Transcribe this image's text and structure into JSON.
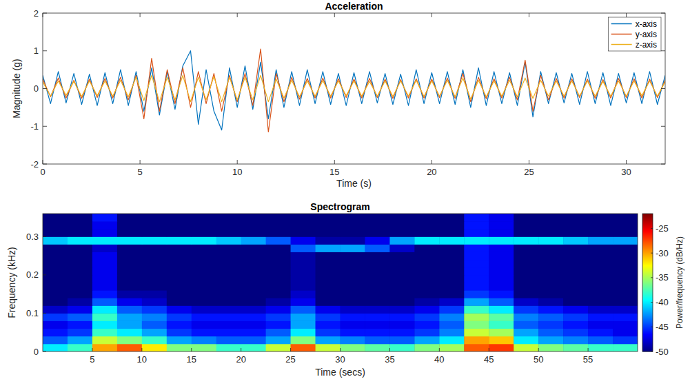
{
  "chart_data": [
    {
      "type": "line",
      "title": "Acceleration",
      "x_label": "Time (s)",
      "y_label": "Magnitude (g)",
      "xlim": [
        0,
        32
      ],
      "ylim": [
        -2,
        2
      ],
      "xticks": [
        0,
        5,
        10,
        15,
        20,
        25,
        30
      ],
      "yticks": [
        -2,
        -1,
        0,
        1,
        2
      ],
      "legend": "top-right",
      "grid": false,
      "x": [
        0,
        0.4,
        0.8,
        1.2,
        1.6,
        2,
        2.4,
        2.8,
        3.2,
        3.6,
        4,
        4.4,
        4.8,
        5.2,
        5.6,
        6,
        6.4,
        6.8,
        7.2,
        7.6,
        8,
        8.4,
        8.8,
        9.2,
        9.6,
        10,
        10.4,
        10.8,
        11.2,
        11.6,
        12,
        12.4,
        12.8,
        13.2,
        13.6,
        14,
        14.4,
        14.8,
        15.2,
        15.6,
        16,
        16.4,
        16.8,
        17.2,
        17.6,
        18,
        18.4,
        18.8,
        19.2,
        19.6,
        20,
        20.4,
        20.8,
        21.2,
        21.6,
        22,
        22.4,
        22.8,
        23.2,
        23.6,
        24,
        24.4,
        24.8,
        25.2,
        25.6,
        26,
        26.4,
        26.8,
        27.2,
        27.6,
        28,
        28.4,
        28.8,
        29.2,
        29.6,
        30,
        30.4,
        30.8,
        31.2,
        31.6,
        32
      ],
      "series": [
        {
          "name": "x-axis",
          "color": "#0072BD",
          "values": [
            0.35,
            -0.4,
            0.45,
            -0.38,
            0.4,
            -0.42,
            0.38,
            -0.45,
            0.42,
            -0.4,
            0.5,
            -0.45,
            0.45,
            -0.6,
            0.55,
            -0.7,
            0.45,
            -0.55,
            0.6,
            1.0,
            -0.95,
            0.5,
            -0.6,
            -1.1,
            0.55,
            -0.5,
            0.6,
            -0.55,
            0.7,
            -0.8,
            0.5,
            -0.5,
            0.45,
            -0.45,
            0.5,
            -0.4,
            0.45,
            -0.42,
            0.4,
            -0.45,
            0.42,
            -0.4,
            0.45,
            -0.38,
            0.4,
            -0.42,
            0.38,
            -0.45,
            0.5,
            -0.4,
            0.42,
            -0.4,
            0.45,
            -0.42,
            0.5,
            -0.5,
            0.55,
            -0.45,
            0.45,
            -0.4,
            0.42,
            -0.45,
            0.7,
            -0.75,
            0.45,
            -0.4,
            0.42,
            -0.38,
            0.4,
            -0.42,
            0.45,
            -0.4,
            0.42,
            -0.45,
            0.4,
            -0.38,
            0.42,
            -0.4,
            0.45,
            -0.42,
            0.35
          ]
        },
        {
          "name": "y-axis",
          "color": "#D95319",
          "values": [
            0.25,
            -0.22,
            0.28,
            -0.25,
            0.22,
            -0.26,
            0.25,
            -0.24,
            0.27,
            -0.25,
            0.3,
            -0.3,
            0.35,
            -0.8,
            0.8,
            -0.6,
            0.5,
            -0.4,
            0.55,
            -0.5,
            0.45,
            -0.4,
            0.4,
            -0.6,
            0.35,
            -0.35,
            0.4,
            -0.45,
            1.05,
            -1.15,
            0.4,
            -0.35,
            0.3,
            -0.28,
            0.27,
            -0.25,
            0.28,
            -0.25,
            0.26,
            -0.24,
            0.25,
            -0.25,
            0.27,
            -0.24,
            0.25,
            -0.26,
            0.24,
            -0.25,
            0.26,
            -0.25,
            0.25,
            -0.24,
            0.28,
            -0.26,
            0.4,
            -0.35,
            0.3,
            -0.27,
            0.26,
            -0.25,
            0.3,
            -0.3,
            0.75,
            -0.6,
            0.35,
            -0.3,
            0.27,
            -0.25,
            0.26,
            -0.24,
            0.25,
            -0.26,
            0.24,
            -0.25,
            0.27,
            -0.24,
            0.26,
            -0.25,
            0.25,
            -0.24,
            0.22
          ]
        },
        {
          "name": "z-axis",
          "color": "#EDB120",
          "values": [
            0.18,
            -0.2,
            0.2,
            -0.18,
            0.19,
            -0.21,
            0.2,
            -0.19,
            0.2,
            -0.2,
            0.22,
            -0.22,
            0.3,
            -0.32,
            0.35,
            -0.35,
            0.3,
            -0.3,
            0.35,
            -0.35,
            0.3,
            -0.3,
            0.32,
            -0.35,
            0.3,
            -0.3,
            0.3,
            -0.3,
            0.35,
            -0.35,
            0.25,
            -0.25,
            0.22,
            -0.22,
            0.2,
            -0.2,
            0.21,
            -0.2,
            0.2,
            -0.19,
            0.2,
            -0.2,
            0.19,
            -0.2,
            0.2,
            -0.21,
            0.2,
            -0.2,
            0.22,
            -0.21,
            0.2,
            -0.2,
            0.22,
            -0.22,
            0.28,
            -0.28,
            0.22,
            -0.22,
            0.2,
            -0.2,
            0.22,
            -0.22,
            0.28,
            -0.26,
            0.22,
            -0.2,
            0.2,
            -0.2,
            0.2,
            -0.2,
            0.2,
            -0.2,
            0.19,
            -0.2,
            0.2,
            -0.2,
            0.2,
            -0.19,
            0.2,
            -0.2,
            0.18
          ]
        }
      ]
    },
    {
      "type": "heatmap",
      "title": "Spectrogram",
      "x_label": "Time (secs)",
      "y_label": "Frequency (kHz)",
      "colorbar_label": "Power/frequency (dB/Hz)",
      "xlim": [
        0,
        60
      ],
      "ylim": [
        0,
        0.36
      ],
      "xticks": [
        5,
        10,
        15,
        20,
        25,
        30,
        35,
        40,
        45,
        50,
        55
      ],
      "yticks": [
        0,
        0.1,
        0.2,
        0.3
      ],
      "x_edges": [
        0,
        2.5,
        5,
        7.5,
        10,
        12.5,
        15,
        17.5,
        20,
        22.5,
        25,
        27.5,
        30,
        32.5,
        35,
        37.5,
        40,
        42.5,
        45,
        47.5,
        50,
        52.5,
        55,
        57.5,
        60
      ],
      "y_edges": [
        0,
        0.02,
        0.04,
        0.06,
        0.08,
        0.1,
        0.12,
        0.14,
        0.16,
        0.18,
        0.2,
        0.22,
        0.24,
        0.26,
        0.28,
        0.3,
        0.32,
        0.34,
        0.36
      ],
      "values": [
        [
          -40,
          -38,
          -30,
          -28,
          -32,
          -36,
          -36,
          -38,
          -38,
          -34,
          -28,
          -34,
          -36,
          -37,
          -38,
          -36,
          -35,
          -28,
          -27,
          -34,
          -36,
          -37,
          -38,
          -38
        ],
        [
          -44,
          -42,
          -34,
          -36,
          -38,
          -42,
          -43,
          -44,
          -44,
          -42,
          -36,
          -42,
          -43,
          -44,
          -44,
          -42,
          -40,
          -30,
          -31,
          -40,
          -42,
          -43,
          -44,
          -45
        ],
        [
          -46,
          -45,
          -38,
          -40,
          -42,
          -45,
          -46,
          -46,
          -46,
          -44,
          -40,
          -45,
          -46,
          -46,
          -46,
          -45,
          -43,
          -34,
          -35,
          -42,
          -44,
          -45,
          -46,
          -47
        ],
        [
          -47,
          -46,
          -40,
          -42,
          -44,
          -46,
          -47,
          -47,
          -47,
          -46,
          -42,
          -46,
          -47,
          -47,
          -47,
          -46,
          -44,
          -36,
          -38,
          -44,
          -45,
          -46,
          -47,
          -47
        ],
        [
          -45,
          -44,
          -38,
          -42,
          -43,
          -45,
          -46,
          -46,
          -46,
          -45,
          -42,
          -45,
          -46,
          -46,
          -46,
          -45,
          -43,
          -35,
          -37,
          -43,
          -44,
          -45,
          -46,
          -46
        ],
        [
          -48,
          -47,
          -40,
          -44,
          -45,
          -47,
          -48,
          -48,
          -48,
          -47,
          -44,
          -47,
          -48,
          -48,
          -48,
          -47,
          -45,
          -38,
          -40,
          -45,
          -46,
          -47,
          -48,
          -48
        ],
        [
          -50,
          -49,
          -44,
          -47,
          -48,
          -50,
          -50,
          -50,
          -50,
          -49,
          -47,
          -50,
          -50,
          -50,
          -50,
          -49,
          -48,
          -42,
          -44,
          -48,
          -49,
          -50,
          -50,
          -50
        ],
        [
          -50,
          -50,
          -46,
          -49,
          -49,
          -50,
          -50,
          -50,
          -50,
          -50,
          -48,
          -50,
          -50,
          -50,
          -50,
          -50,
          -50,
          -45,
          -46,
          -50,
          -50,
          -50,
          -50,
          -50
        ],
        [
          -50,
          -50,
          -47,
          -50,
          -50,
          -50,
          -50,
          -50,
          -50,
          -50,
          -49,
          -50,
          -50,
          -50,
          -50,
          -50,
          -50,
          -46,
          -47,
          -50,
          -50,
          -50,
          -50,
          -50
        ],
        [
          -50,
          -50,
          -47,
          -50,
          -50,
          -50,
          -50,
          -50,
          -50,
          -50,
          -49,
          -50,
          -50,
          -50,
          -50,
          -50,
          -50,
          -46,
          -47,
          -50,
          -50,
          -50,
          -50,
          -50
        ],
        [
          -50,
          -50,
          -47,
          -50,
          -50,
          -50,
          -50,
          -50,
          -50,
          -50,
          -49,
          -50,
          -50,
          -50,
          -50,
          -50,
          -50,
          -46,
          -47,
          -50,
          -50,
          -50,
          -50,
          -50
        ],
        [
          -50,
          -50,
          -47,
          -50,
          -50,
          -50,
          -50,
          -50,
          -50,
          -50,
          -49,
          -50,
          -50,
          -50,
          -50,
          -50,
          -50,
          -46,
          -47,
          -50,
          -50,
          -50,
          -50,
          -50
        ],
        [
          -50,
          -50,
          -47,
          -50,
          -50,
          -50,
          -50,
          -50,
          -50,
          -50,
          -49,
          -50,
          -50,
          -50,
          -50,
          -50,
          -50,
          -46,
          -47,
          -50,
          -50,
          -50,
          -50,
          -50
        ],
        [
          -50,
          -50,
          -48,
          -50,
          -50,
          -50,
          -50,
          -50,
          -50,
          -50,
          -44,
          -42,
          -42,
          -44,
          -48,
          -50,
          -50,
          -46,
          -47,
          -50,
          -50,
          -50,
          -50,
          -50
        ],
        [
          -41,
          -40,
          -40,
          -40,
          -40,
          -40,
          -40,
          -41,
          -42,
          -44,
          -47,
          -49,
          -49,
          -47,
          -42,
          -40,
          -40,
          -40,
          -40,
          -40,
          -40,
          -41,
          -42,
          -42
        ],
        [
          -50,
          -50,
          -47,
          -50,
          -50,
          -50,
          -50,
          -50,
          -50,
          -50,
          -50,
          -50,
          -50,
          -50,
          -50,
          -50,
          -50,
          -46,
          -47,
          -50,
          -50,
          -50,
          -50,
          -50
        ],
        [
          -50,
          -50,
          -47,
          -50,
          -50,
          -50,
          -50,
          -50,
          -50,
          -50,
          -50,
          -50,
          -50,
          -50,
          -50,
          -50,
          -50,
          -46,
          -47,
          -50,
          -50,
          -50,
          -50,
          -50
        ],
        [
          -50,
          -50,
          -46,
          -50,
          -50,
          -50,
          -50,
          -50,
          -50,
          -50,
          -50,
          -50,
          -50,
          -50,
          -50,
          -50,
          -50,
          -46,
          -47,
          -50,
          -50,
          -50,
          -50,
          -50
        ]
      ],
      "colorbar_lim": [
        -50,
        -22
      ],
      "colorbar_ticks": [
        -50,
        -45,
        -40,
        -35,
        -30,
        -25
      ]
    }
  ]
}
